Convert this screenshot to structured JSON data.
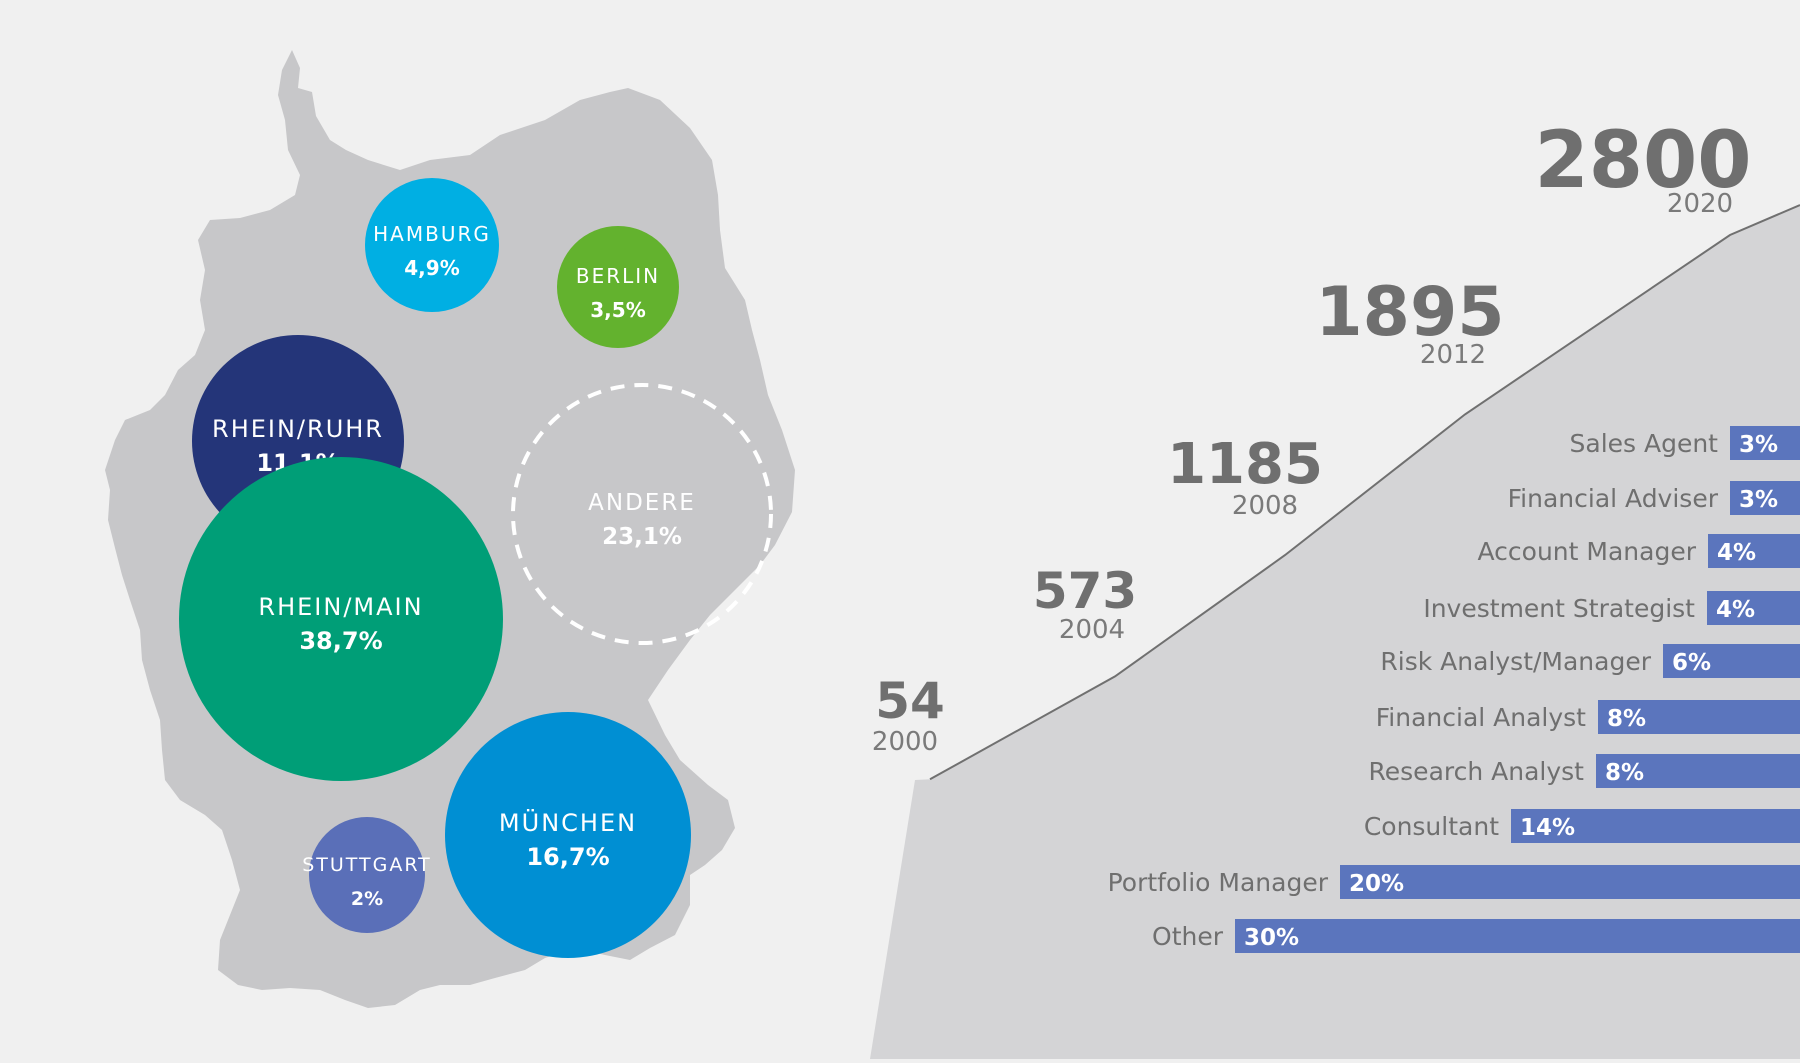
{
  "chart_data": [
    {
      "type": "bubble-map",
      "region": "Germany",
      "bubbles": [
        {
          "name": "HAMBURG",
          "label": "4,9%",
          "value": 4.9,
          "color": "#00afe3",
          "dashed": false
        },
        {
          "name": "BERLIN",
          "label": "3,5%",
          "value": 3.5,
          "color": "#63b22e",
          "dashed": false
        },
        {
          "name": "RHEIN/RUHR",
          "label": "11,1%",
          "value": 11.1,
          "color": "#243579",
          "dashed": false
        },
        {
          "name": "RHEIN/MAIN",
          "label": "38,7%",
          "value": 38.7,
          "color": "#009e77",
          "dashed": false
        },
        {
          "name": "ANDERE",
          "label": "23,1%",
          "value": 23.1,
          "color": "none",
          "dashed": true
        },
        {
          "name": "STUTTGART",
          "label": "2%",
          "value": 2.0,
          "color": "#5a6fb8",
          "dashed": false
        },
        {
          "name": "MÜNCHEN",
          "label": "16,7%",
          "value": 16.7,
          "color": "#008fd3",
          "dashed": false
        }
      ]
    },
    {
      "type": "area",
      "x": [
        "2000",
        "2004",
        "2008",
        "2012",
        "2020"
      ],
      "values": [
        54,
        573,
        1185,
        1895,
        2800
      ],
      "value_labels": [
        "54",
        "573",
        "1185",
        "1895",
        "2800"
      ],
      "line_color": "#707070",
      "fill_color": "#d4d4d6"
    },
    {
      "type": "bar",
      "orientation": "horizontal",
      "categories": [
        "Sales Agent",
        "Financial Adviser",
        "Account Manager",
        "Investment Strategist",
        "Risk Analyst/Manager",
        "Financial Analyst",
        "Research Analyst",
        "Consultant",
        "Portfolio Manager",
        "Other"
      ],
      "values": [
        3,
        3,
        4,
        4,
        6,
        8,
        8,
        14,
        20,
        30
      ],
      "value_labels": [
        "3%",
        "3%",
        "4%",
        "4%",
        "6%",
        "8%",
        "8%",
        "14%",
        "20%",
        "30%"
      ],
      "bar_color": "#5b75bd"
    }
  ]
}
